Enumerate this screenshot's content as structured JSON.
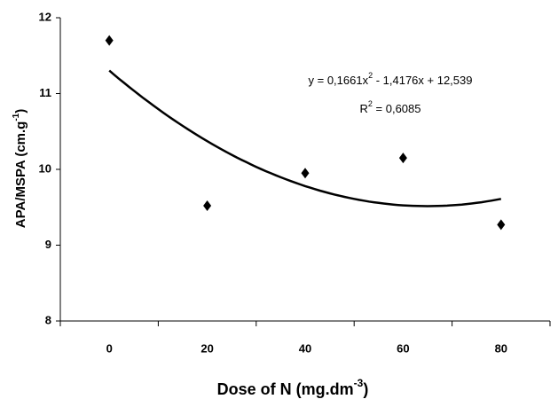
{
  "chart_data": {
    "type": "scatter",
    "x_label": [
      "Dose of N (mg.dm",
      "-3",
      ")"
    ],
    "y_label": [
      "APA/MSPA (cm.g",
      "-1",
      ")"
    ],
    "x": [
      0,
      20,
      40,
      60,
      80
    ],
    "values": [
      11.7,
      9.52,
      9.95,
      10.15,
      9.27
    ],
    "color": "#000000",
    "trendline": {
      "equation": [
        "y = 0,1661x",
        "2",
        " - 1,4176x + 12,539"
      ],
      "r2": [
        "R",
        "2",
        " = 0,6085"
      ],
      "degree": 2
    },
    "xlim": [
      -10,
      90
    ],
    "xticks": [
      0,
      20,
      40,
      60,
      80
    ],
    "ylim": [
      8,
      12
    ],
    "yticks": [
      8,
      9,
      10,
      11,
      12
    ]
  }
}
